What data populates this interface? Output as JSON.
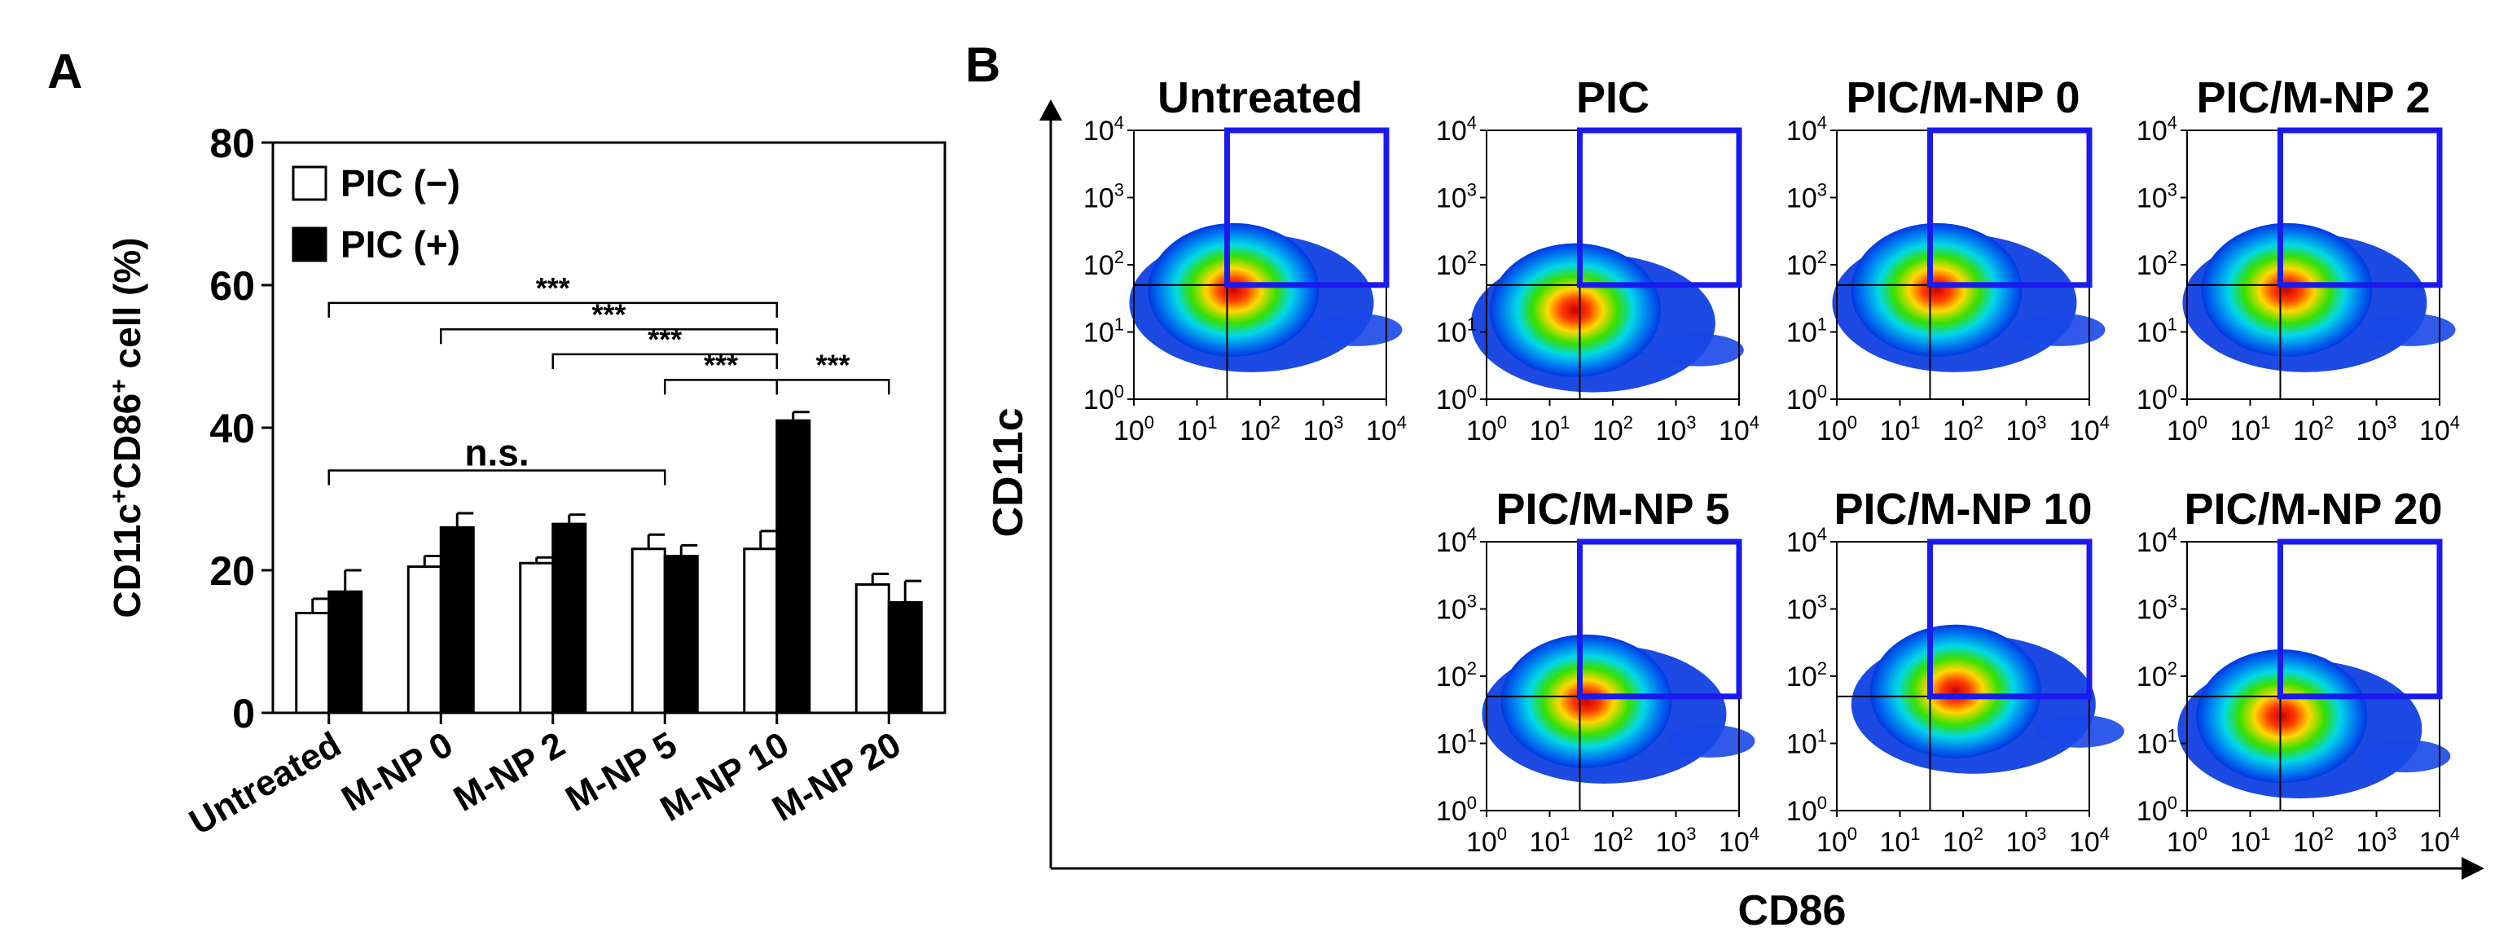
{
  "figure": {
    "panel_a_label": "A",
    "panel_b_label": "B"
  },
  "chart_data": [
    {
      "type": "bar",
      "panel": "A",
      "ylabel_parts": [
        "CD11c",
        "+",
        "CD86",
        "+",
        " cell (%)"
      ],
      "ylim": [
        0,
        80
      ],
      "yticks": [
        0,
        20,
        40,
        60,
        80
      ],
      "categories": [
        "Untreated",
        "M-NP 0",
        "M-NP 2",
        "M-NP 5",
        "M-NP 10",
        "M-NP 20"
      ],
      "series": [
        {
          "name": "PIC (−)",
          "fill": "#ffffff",
          "values": [
            14,
            20.5,
            21,
            23,
            23,
            18
          ],
          "errors": [
            2,
            1.5,
            0.8,
            2,
            2.5,
            1.5
          ]
        },
        {
          "name": "PIC (+)",
          "fill": "#000000",
          "values": [
            17,
            26,
            26.5,
            22,
            41,
            15.5
          ],
          "errors": [
            3,
            2,
            1.3,
            1.5,
            1.2,
            3
          ]
        }
      ],
      "legend_position": "top-left",
      "significance": [
        {
          "label": "***",
          "from": 0,
          "to": 4,
          "y": 57.5
        },
        {
          "label": "***",
          "from": 1,
          "to": 4,
          "y": 53.8
        },
        {
          "label": "***",
          "from": 2,
          "to": 4,
          "y": 50.3
        },
        {
          "label": "***",
          "from": 3,
          "to": 4,
          "y": 46.7
        },
        {
          "label": "***",
          "from": 4,
          "to": 5,
          "y": 46.7
        },
        {
          "label": "n.s.",
          "from": 0,
          "to": 3,
          "y": 34
        }
      ]
    },
    {
      "type": "heatmap",
      "panel": "B",
      "xlabel": "CD86",
      "ylabel": "CD11c",
      "axis_scale": "log",
      "tick_base": "10",
      "tick_exponents": [
        "0",
        "1",
        "2",
        "3",
        "4"
      ],
      "gate": {
        "cd86_min": 30,
        "cd86_max": 10000,
        "cd11c_min": 50,
        "cd11c_max": 10000
      },
      "plots": [
        {
          "title": "Untreated",
          "row": 0,
          "col": 0,
          "center_x": 30,
          "center_y": 50
        },
        {
          "title": "PIC",
          "row": 0,
          "col": 1,
          "center_x": 20,
          "center_y": 25
        },
        {
          "title": "PIC/M-NP 0",
          "row": 0,
          "col": 2,
          "center_x": 30,
          "center_y": 50
        },
        {
          "title": "PIC/M-NP 2",
          "row": 0,
          "col": 3,
          "center_x": 30,
          "center_y": 50
        },
        {
          "title": "PIC/M-NP 5",
          "row": 1,
          "col": 1,
          "center_x": 30,
          "center_y": 50
        },
        {
          "title": "PIC/M-NP 10",
          "row": 1,
          "col": 2,
          "center_x": 60,
          "center_y": 70
        },
        {
          "title": "PIC/M-NP 20",
          "row": 1,
          "col": 3,
          "center_x": 25,
          "center_y": 30
        }
      ]
    }
  ]
}
